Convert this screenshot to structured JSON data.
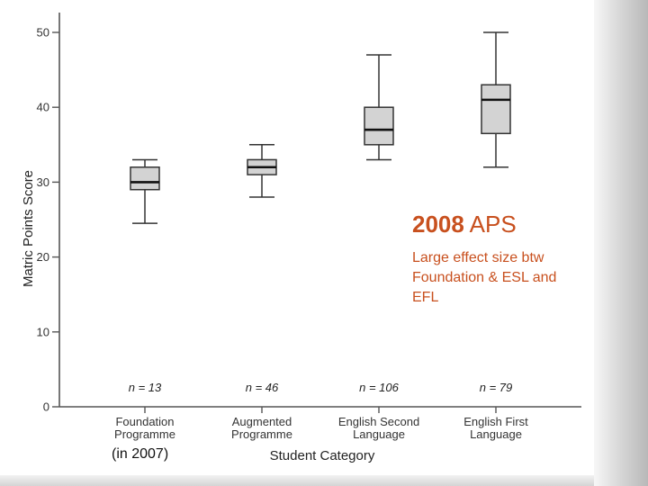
{
  "chart_data": {
    "type": "box",
    "xlabel": "Student Category",
    "ylabel": "Matric Points Score",
    "ylim": [
      0,
      50
    ],
    "yticks": [
      0,
      10,
      20,
      30,
      40,
      50
    ],
    "grid": false,
    "box_color": "#d3d3d3",
    "categories": [
      {
        "label_lines": [
          "Foundation",
          "Programme"
        ],
        "n_label": "n = 13",
        "min": 24.5,
        "q1": 29,
        "median": 30,
        "q3": 32,
        "max": 33
      },
      {
        "label_lines": [
          "Augmented",
          "Programme"
        ],
        "n_label": "n = 46",
        "min": 28,
        "q1": 31,
        "median": 32,
        "q3": 33,
        "max": 35
      },
      {
        "label_lines": [
          "English Second",
          "Language"
        ],
        "n_label": "n = 106",
        "min": 33,
        "q1": 35,
        "median": 37,
        "q3": 40,
        "max": 47
      },
      {
        "label_lines": [
          "English First",
          "Language"
        ],
        "n_label": "n = 79",
        "min": 32,
        "q1": 36.5,
        "median": 41,
        "q3": 43,
        "max": 50
      }
    ]
  },
  "annotation": {
    "year": "2008",
    "label": "APS",
    "body_lines": [
      "Large effect size btw",
      "Foundation & ESL and",
      "EFL"
    ],
    "color": "#c8501e"
  },
  "footnote": "(in 2007)"
}
